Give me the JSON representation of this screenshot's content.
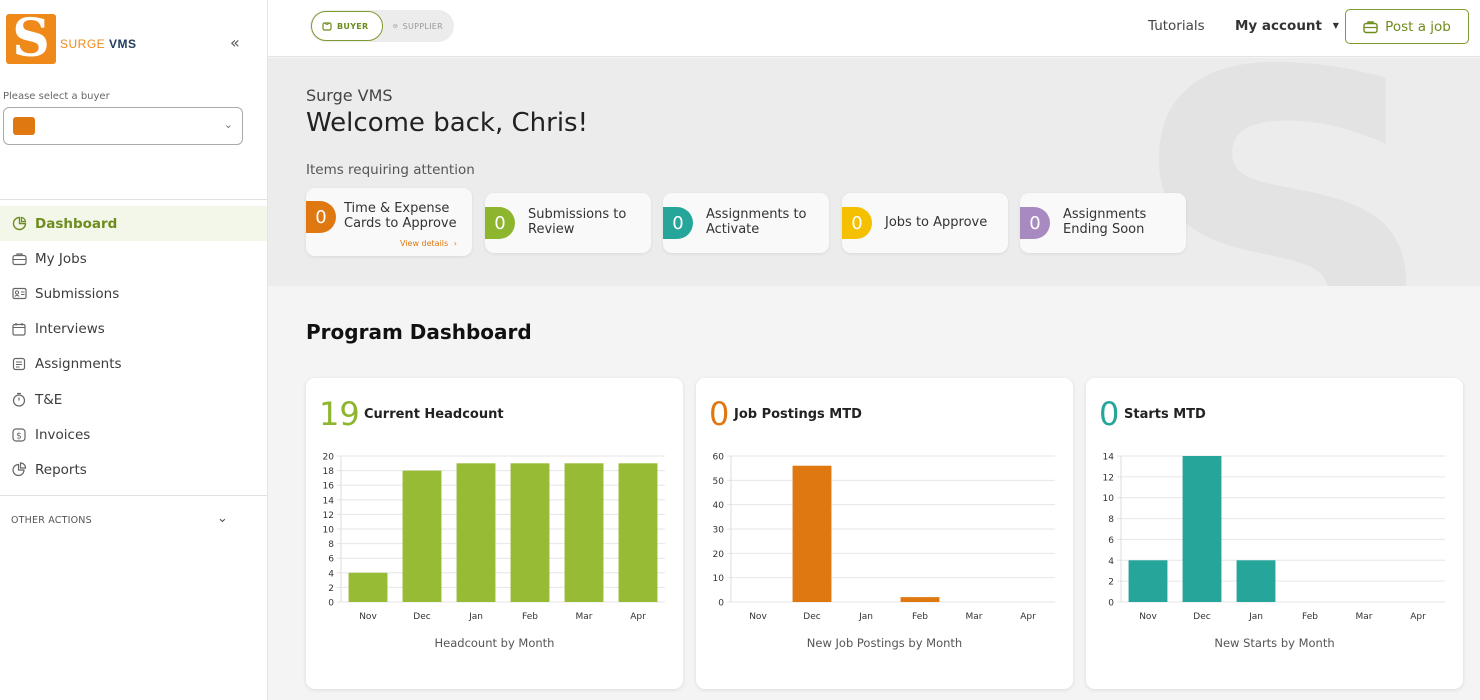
{
  "brand": {
    "surge": "SURGE",
    "vms": "VMS",
    "mark": "S"
  },
  "sidebar": {
    "buyer_label": "Please select a buyer",
    "nav": [
      {
        "label": "Dashboard",
        "icon": "dashboard-icon",
        "active": true
      },
      {
        "label": "My Jobs",
        "icon": "briefcase-icon"
      },
      {
        "label": "Submissions",
        "icon": "id-card-icon"
      },
      {
        "label": "Interviews",
        "icon": "calendar-icon"
      },
      {
        "label": "Assignments",
        "icon": "document-icon"
      },
      {
        "label": "T&E",
        "icon": "stopwatch-icon"
      },
      {
        "label": "Invoices",
        "icon": "dollar-icon"
      },
      {
        "label": "Reports",
        "icon": "pie-chart-icon"
      }
    ],
    "other_actions": "OTHER ACTIONS"
  },
  "topbar": {
    "buyer": "BUYER",
    "supplier": "SUPPLIER",
    "tutorials": "Tutorials",
    "my_account": "My account",
    "post_job": "Post a job"
  },
  "hero": {
    "subtitle": "Surge VMS",
    "title": "Welcome back, Chris!",
    "attention": "Items requiring attention",
    "view_details": "View details",
    "cards": [
      {
        "count": "0",
        "line1": "Time & Expense",
        "line2": "Cards to Approve",
        "color": "#e07812"
      },
      {
        "count": "0",
        "line1": "Submissions to",
        "line2": "Review",
        "color": "#8db52e"
      },
      {
        "count": "0",
        "line1": "Assignments to",
        "line2": "Activate",
        "color": "#26a69a"
      },
      {
        "count": "0",
        "line1": "Jobs to Approve",
        "line2": "",
        "color": "#f5c000"
      },
      {
        "count": "0",
        "line1": "Assignments",
        "line2": "Ending Soon",
        "color": "#a98ac0"
      }
    ]
  },
  "dashboard": {
    "title": "Program Dashboard",
    "cards": [
      {
        "number": "19",
        "title": "Current Headcount",
        "caption": "Headcount by Month",
        "color": "#8db52e"
      },
      {
        "number": "0",
        "title": "Job Postings MTD",
        "caption": "New Job Postings by Month",
        "color": "#e07812"
      },
      {
        "number": "0",
        "title": "Starts MTD",
        "caption": "New Starts by Month",
        "color": "#26a69a"
      }
    ]
  },
  "chart_data": [
    {
      "type": "bar",
      "categories": [
        "Nov",
        "Dec",
        "Jan",
        "Feb",
        "Mar",
        "Apr"
      ],
      "values": [
        4,
        18,
        19,
        19,
        19,
        19
      ],
      "ylim": [
        0,
        20
      ],
      "yticks": [
        0,
        2,
        4,
        6,
        8,
        10,
        12,
        14,
        16,
        18,
        20
      ],
      "xlabel": "Headcount by Month",
      "color": "#97bb35"
    },
    {
      "type": "bar",
      "categories": [
        "Nov",
        "Dec",
        "Jan",
        "Feb",
        "Mar",
        "Apr"
      ],
      "values": [
        0,
        56,
        0,
        2,
        0,
        0
      ],
      "ylim": [
        0,
        60
      ],
      "yticks": [
        0,
        10,
        20,
        30,
        40,
        50,
        60
      ],
      "xlabel": "New Job Postings by Month",
      "color": "#e07812"
    },
    {
      "type": "bar",
      "categories": [
        "Nov",
        "Dec",
        "Jan",
        "Feb",
        "Mar",
        "Apr"
      ],
      "values": [
        4,
        14,
        4,
        0,
        0,
        0
      ],
      "ylim": [
        0,
        14
      ],
      "yticks": [
        0,
        2,
        4,
        6,
        8,
        10,
        12,
        14
      ],
      "xlabel": "New Starts by Month",
      "color": "#26a69a"
    }
  ]
}
